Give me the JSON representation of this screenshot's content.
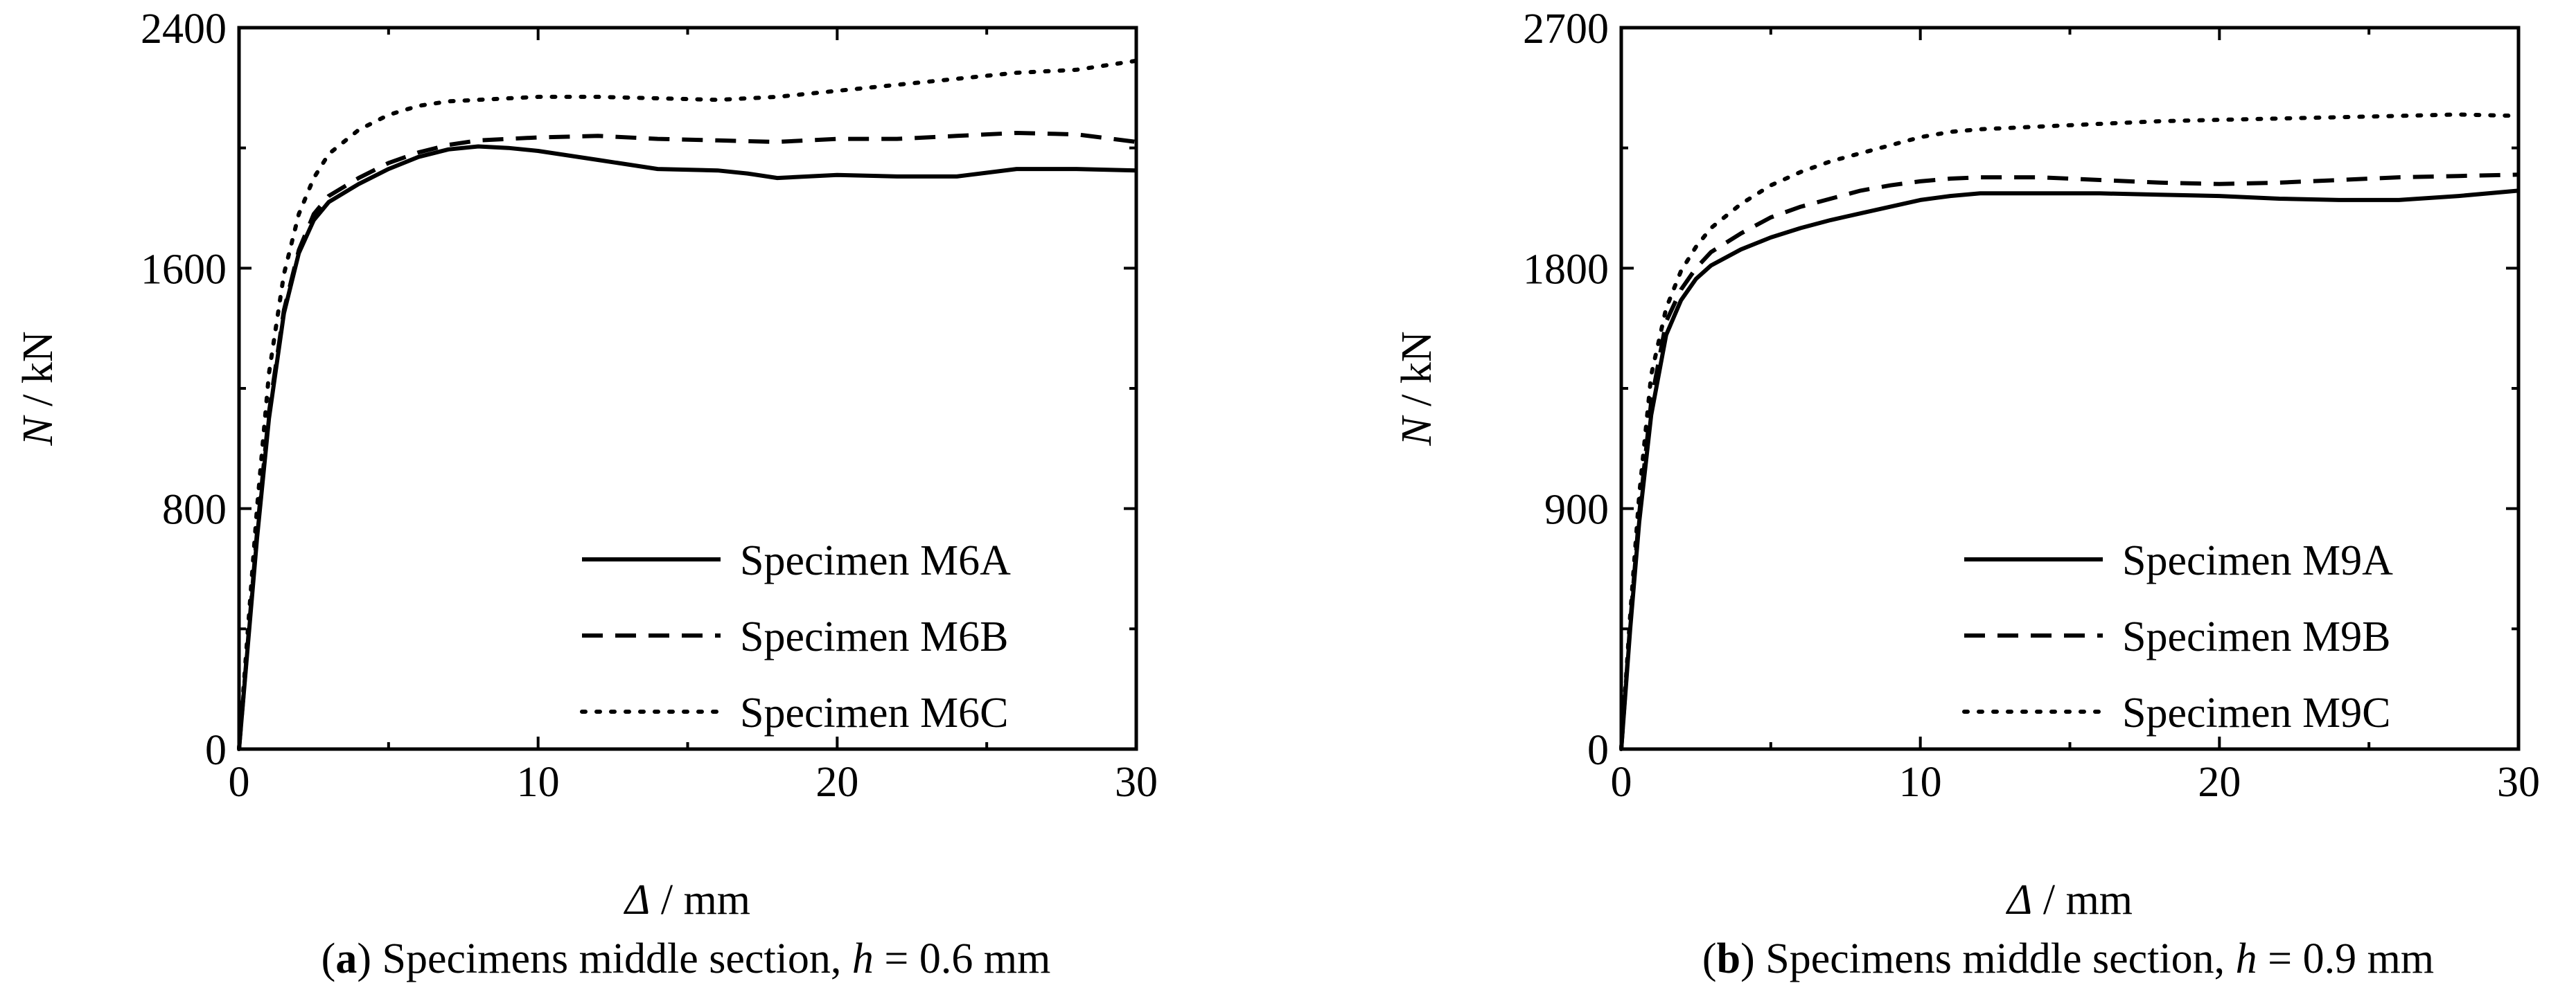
{
  "chart_data": [
    {
      "type": "line",
      "panel_label": "a",
      "caption_prefix": "Specimens middle section, ",
      "caption_var": "h",
      "caption_suffix": " = 0.6 mm",
      "xlabel_var": "Δ",
      "xlabel_unit": " / mm",
      "ylabel_var": "N",
      "ylabel_unit": " / kN",
      "xlim": [
        0,
        30
      ],
      "ylim": [
        0,
        2400
      ],
      "xticks": [
        0,
        10,
        20,
        30
      ],
      "yticks": [
        0,
        800,
        1600,
        2400
      ],
      "legend_position": "bottom-right",
      "series": [
        {
          "name": "Specimen M6A",
          "style": "solid",
          "x": [
            0,
            0.3,
            0.6,
            1.0,
            1.5,
            2.0,
            2.5,
            3.0,
            4.0,
            5.0,
            6.0,
            7.0,
            8.0,
            9.0,
            10.0,
            12.0,
            14.0,
            16.0,
            17.0,
            18.0,
            20.0,
            22.0,
            24.0,
            26.0,
            28.0,
            30.0
          ],
          "y": [
            0,
            350,
            700,
            1100,
            1450,
            1650,
            1760,
            1820,
            1880,
            1930,
            1970,
            1995,
            2005,
            2000,
            1990,
            1960,
            1930,
            1925,
            1915,
            1900,
            1910,
            1905,
            1905,
            1930,
            1930,
            1925
          ]
        },
        {
          "name": "Specimen M6B",
          "style": "dashed",
          "x": [
            0,
            0.3,
            0.6,
            1.0,
            1.5,
            2.0,
            2.5,
            3.0,
            4.0,
            5.0,
            6.0,
            7.0,
            8.0,
            9.0,
            10.0,
            12.0,
            14.0,
            16.0,
            18.0,
            20.0,
            22.0,
            24.0,
            26.0,
            28.0,
            30.0
          ],
          "y": [
            0,
            360,
            720,
            1120,
            1460,
            1660,
            1780,
            1840,
            1900,
            1950,
            1985,
            2010,
            2025,
            2030,
            2035,
            2040,
            2030,
            2025,
            2020,
            2030,
            2030,
            2040,
            2050,
            2045,
            2020
          ]
        },
        {
          "name": "Specimen M6C",
          "style": "dotted",
          "x": [
            0,
            0.3,
            0.6,
            1.0,
            1.5,
            2.0,
            2.5,
            3.0,
            4.0,
            5.0,
            6.0,
            7.0,
            8.0,
            10.0,
            12.0,
            14.0,
            16.0,
            18.0,
            20.0,
            22.0,
            24.0,
            26.0,
            28.0,
            30.0
          ],
          "y": [
            0,
            400,
            800,
            1250,
            1580,
            1780,
            1900,
            1980,
            2060,
            2110,
            2140,
            2155,
            2160,
            2170,
            2170,
            2165,
            2160,
            2170,
            2190,
            2210,
            2230,
            2250,
            2260,
            2290
          ]
        }
      ]
    },
    {
      "type": "line",
      "panel_label": "b",
      "caption_prefix": "Specimens middle section, ",
      "caption_var": "h",
      "caption_suffix": " = 0.9 mm",
      "xlabel_var": "Δ",
      "xlabel_unit": " / mm",
      "ylabel_var": "N",
      "ylabel_unit": " / kN",
      "xlim": [
        0,
        30
      ],
      "ylim": [
        0,
        2700
      ],
      "xticks": [
        0,
        10,
        20,
        30
      ],
      "yticks": [
        0,
        900,
        1800,
        2700
      ],
      "legend_position": "bottom-right",
      "series": [
        {
          "name": "Specimen M9A",
          "style": "solid",
          "x": [
            0,
            0.3,
            0.6,
            1.0,
            1.5,
            2.0,
            2.5,
            3.0,
            4.0,
            5.0,
            6.0,
            7.0,
            8.0,
            9.0,
            10.0,
            11.0,
            12.0,
            14.0,
            16.0,
            18.0,
            20.0,
            22.0,
            24.0,
            26.0,
            28.0,
            30.0
          ],
          "y": [
            0,
            450,
            850,
            1250,
            1550,
            1680,
            1760,
            1810,
            1870,
            1915,
            1950,
            1980,
            2005,
            2030,
            2055,
            2070,
            2080,
            2080,
            2080,
            2075,
            2070,
            2060,
            2055,
            2055,
            2070,
            2090
          ]
        },
        {
          "name": "Specimen M9B",
          "style": "dashed",
          "x": [
            0,
            0.3,
            0.6,
            1.0,
            1.5,
            2.0,
            2.5,
            3.0,
            4.0,
            5.0,
            6.0,
            7.0,
            8.0,
            9.0,
            10.0,
            11.0,
            12.0,
            14.0,
            16.0,
            18.0,
            20.0,
            22.0,
            24.0,
            26.0,
            28.0,
            30.0
          ],
          "y": [
            0,
            470,
            880,
            1300,
            1600,
            1720,
            1800,
            1860,
            1930,
            1990,
            2030,
            2060,
            2090,
            2110,
            2125,
            2135,
            2140,
            2140,
            2130,
            2120,
            2115,
            2120,
            2130,
            2140,
            2145,
            2150
          ]
        },
        {
          "name": "Specimen M9C",
          "style": "dotted",
          "x": [
            0,
            0.3,
            0.6,
            1.0,
            1.5,
            2.0,
            2.5,
            3.0,
            4.0,
            5.0,
            6.0,
            7.0,
            8.0,
            9.0,
            10.0,
            11.0,
            12.0,
            14.0,
            16.0,
            18.0,
            20.0,
            22.0,
            24.0,
            26.0,
            28.0,
            30.0
          ],
          "y": [
            0,
            500,
            950,
            1400,
            1650,
            1790,
            1880,
            1950,
            2040,
            2110,
            2160,
            2200,
            2230,
            2260,
            2290,
            2310,
            2320,
            2330,
            2340,
            2350,
            2355,
            2360,
            2365,
            2370,
            2375,
            2370
          ]
        }
      ]
    }
  ]
}
